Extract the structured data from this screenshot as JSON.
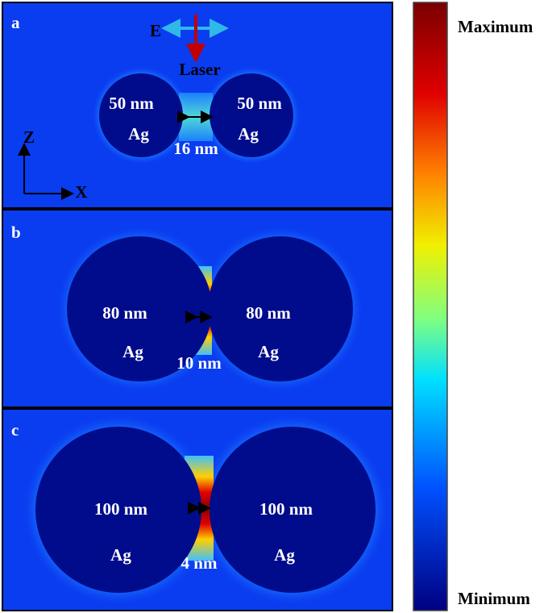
{
  "panels": [
    {
      "letter": "a",
      "left_size": "50 nm",
      "right_size": "50 nm",
      "left_material": "Ag",
      "right_material": "Ag",
      "gap": "16 nm"
    },
    {
      "letter": "b",
      "left_size": "80 nm",
      "right_size": "80 nm",
      "left_material": "Ag",
      "right_material": "Ag",
      "gap": "10 nm"
    },
    {
      "letter": "c",
      "left_size": "100 nm",
      "right_size": "100 nm",
      "left_material": "Ag",
      "right_material": "Ag",
      "gap": "4 nm"
    }
  ],
  "field_label": "E",
  "laser_label": "Laser",
  "axis_z": "Z",
  "axis_x": "X",
  "colorbar": {
    "max_label": "Maximum",
    "min_label": "Minimum"
  }
}
